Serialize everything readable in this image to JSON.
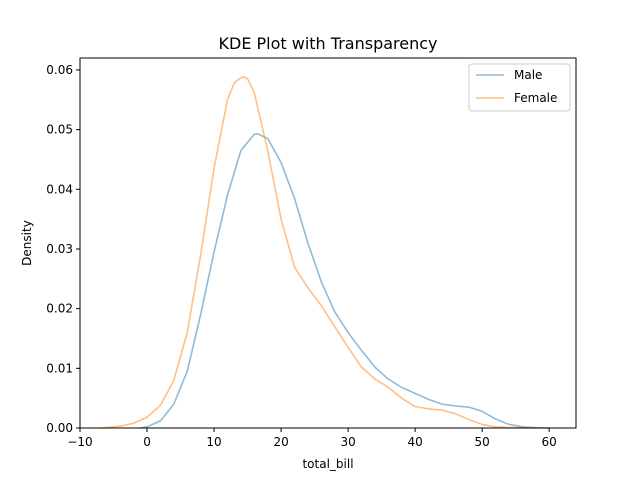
{
  "chart_data": {
    "type": "line",
    "title": "KDE Plot with Transparency",
    "xlabel": "total_bill",
    "ylabel": "Density",
    "xlim": [
      -10,
      64
    ],
    "ylim": [
      0,
      0.062
    ],
    "xticks": [
      -10,
      0,
      10,
      20,
      30,
      40,
      50,
      60
    ],
    "xtick_labels": [
      "−10",
      "0",
      "10",
      "20",
      "30",
      "40",
      "50",
      "60"
    ],
    "yticks": [
      0,
      0.01,
      0.02,
      0.03,
      0.04,
      0.05,
      0.06
    ],
    "ytick_labels": [
      "0.00",
      "0.01",
      "0.02",
      "0.03",
      "0.04",
      "0.05",
      "0.06"
    ],
    "grid": false,
    "legend": "top-right",
    "series": [
      {
        "name": "Male",
        "color": "#1f77b4",
        "opacity": 0.5,
        "x": [
          -1,
          0,
          2,
          4,
          6,
          8,
          10,
          12,
          14,
          16,
          16.5,
          18,
          20,
          22,
          24,
          26,
          28,
          30,
          32,
          34,
          36,
          38,
          40,
          42,
          44,
          46,
          48,
          50,
          52,
          54,
          56,
          58,
          60
        ],
        "y": [
          0.0,
          0.0002,
          0.0012,
          0.004,
          0.0095,
          0.019,
          0.0295,
          0.039,
          0.0465,
          0.0492,
          0.0493,
          0.0485,
          0.0445,
          0.0385,
          0.031,
          0.0245,
          0.0195,
          0.016,
          0.013,
          0.0102,
          0.0082,
          0.0068,
          0.0058,
          0.0048,
          0.004,
          0.0037,
          0.0035,
          0.0028,
          0.0015,
          0.0006,
          0.0002,
          5e-05,
          0.0
        ]
      },
      {
        "name": "Female",
        "color": "#ff7f0e",
        "opacity": 0.5,
        "x": [
          -7,
          -4,
          -2,
          0,
          2,
          4,
          6,
          8,
          10,
          12,
          13,
          14,
          14.5,
          15,
          16,
          18,
          20,
          22,
          24,
          26,
          28,
          30,
          32,
          34,
          36,
          38,
          40,
          42,
          44,
          46,
          48,
          50,
          52,
          54,
          56,
          58
        ],
        "y": [
          0.0,
          0.0003,
          0.0008,
          0.0018,
          0.0038,
          0.008,
          0.016,
          0.029,
          0.0435,
          0.055,
          0.0578,
          0.0587,
          0.0588,
          0.0585,
          0.0562,
          0.0465,
          0.035,
          0.027,
          0.0235,
          0.0205,
          0.017,
          0.0135,
          0.0102,
          0.0082,
          0.0068,
          0.005,
          0.0036,
          0.0032,
          0.003,
          0.0024,
          0.0014,
          0.0006,
          0.0002,
          8e-05,
          2e-05,
          0.0
        ]
      }
    ]
  }
}
